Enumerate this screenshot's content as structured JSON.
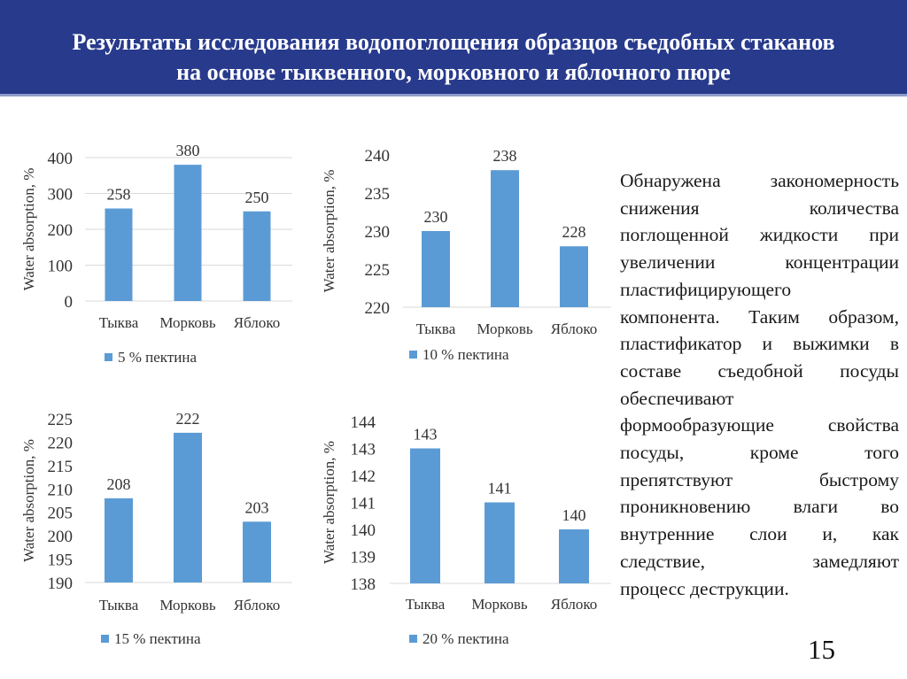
{
  "header": {
    "title_line1": "Результаты исследования водопоглощения образцов  съедобных стаканов",
    "title_line2": "на основе тыквенного, морковного и яблочного пюре"
  },
  "colors": {
    "header_bg": "#283a8c",
    "bar": "#5b9bd5",
    "grid": "#d9d9d9"
  },
  "chart_data": [
    {
      "type": "bar",
      "title": "",
      "xlabel": "",
      "ylabel": "Water absorption, %",
      "categories": [
        "Тыква",
        "Морковь",
        "Яблоко"
      ],
      "series": [
        {
          "name": "5 % пектина",
          "values": [
            258,
            380,
            250
          ]
        }
      ],
      "ylim": [
        0,
        400
      ],
      "yticks": [
        0,
        100,
        200,
        300,
        400
      ],
      "grid": true,
      "legend": "bottom"
    },
    {
      "type": "bar",
      "title": "",
      "xlabel": "",
      "ylabel": "Water absorption, %",
      "categories": [
        "Тыква",
        "Морковь",
        "Яблоко"
      ],
      "series": [
        {
          "name": "10 % пектина",
          "values": [
            230,
            238,
            228
          ]
        }
      ],
      "ylim": [
        220,
        240
      ],
      "yticks": [
        220,
        225,
        230,
        235,
        240
      ],
      "grid": false,
      "legend": "bottom"
    },
    {
      "type": "bar",
      "title": "",
      "xlabel": "",
      "ylabel": "Water absorption, %",
      "categories": [
        "Тыква",
        "Морковь",
        "Яблоко"
      ],
      "series": [
        {
          "name": "15 % пектина",
          "values": [
            208,
            222,
            203
          ]
        }
      ],
      "ylim": [
        190,
        225
      ],
      "yticks": [
        190,
        195,
        200,
        205,
        210,
        215,
        220,
        225
      ],
      "grid": false,
      "legend": "bottom"
    },
    {
      "type": "bar",
      "title": "",
      "xlabel": "",
      "ylabel": "Water absorption, %",
      "categories": [
        "Тыква",
        "Морковь",
        "Яблоко"
      ],
      "series": [
        {
          "name": "20 % пектина",
          "values": [
            143,
            141,
            140
          ]
        }
      ],
      "ylim": [
        138,
        144
      ],
      "yticks": [
        138,
        139,
        140,
        141,
        142,
        143,
        144
      ],
      "grid": false,
      "legend": "bottom"
    }
  ],
  "description": {
    "lines": [
      {
        "text": "Обнаружена закономерность",
        "justify": true
      },
      {
        "text": "снижения количества",
        "justify": true
      },
      {
        "text": "поглощенной жидкости при",
        "justify": true
      },
      {
        "text": "увеличении концентрации",
        "justify": true
      },
      {
        "text": "пластифицирующего",
        "justify": false
      },
      {
        "text": "компонента. Таким образом,",
        "justify": true
      },
      {
        "text": "пластификатор и выжимки в",
        "justify": true
      },
      {
        "text": "составе съедобной посуды",
        "justify": true
      },
      {
        "text": "обеспечивают",
        "justify": false
      },
      {
        "text": "формообразующие свойства",
        "justify": true
      },
      {
        "text": "посуды, кроме того",
        "justify": true
      },
      {
        "text": "препятствуют быстрому",
        "justify": true
      },
      {
        "text": "проникновению влаги во",
        "justify": true
      },
      {
        "text": "внутренние слои и, как",
        "justify": true
      },
      {
        "text": "следствие, замедляют",
        "justify": true
      },
      {
        "text": "процесс деструкции.",
        "justify": false
      }
    ]
  },
  "page_number": "15"
}
